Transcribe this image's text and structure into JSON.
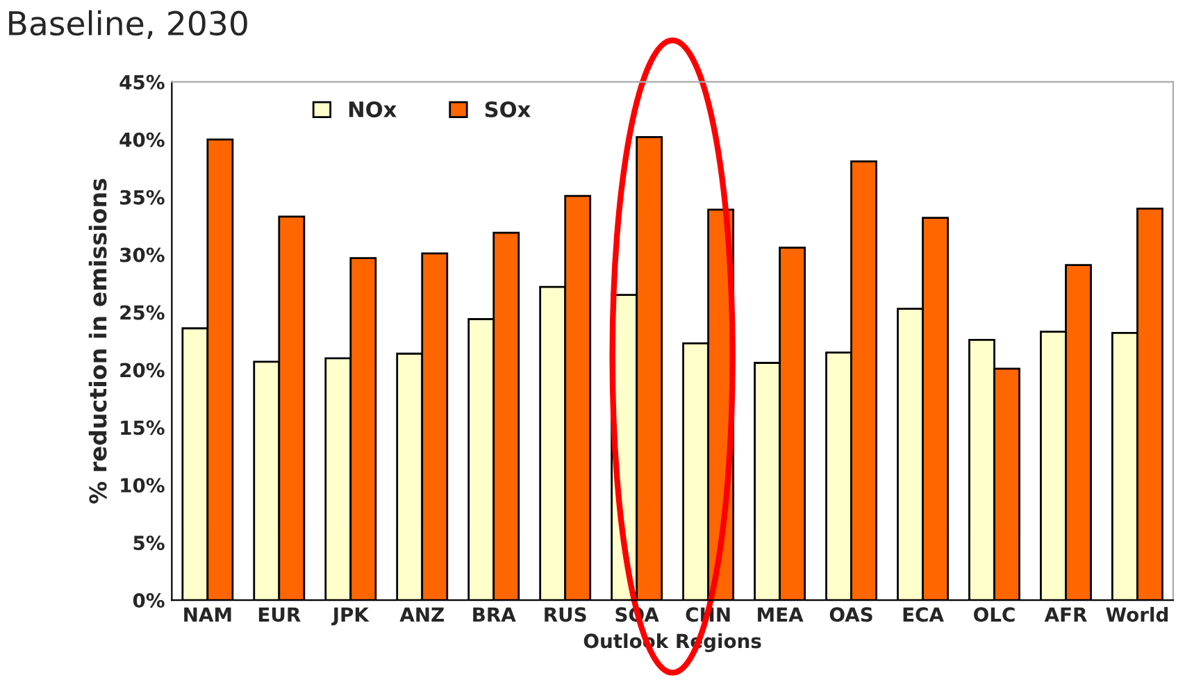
{
  "chart_data": {
    "type": "bar",
    "title": "Baseline, 2030",
    "xlabel": "Outlook Regions",
    "ylabel": "% reduction in emissions",
    "categories": [
      "NAM",
      "EUR",
      "JPK",
      "ANZ",
      "BRA",
      "RUS",
      "SOA",
      "CHN",
      "MEA",
      "OAS",
      "ECA",
      "OLC",
      "AFR",
      "World"
    ],
    "series": [
      {
        "name": "NOx",
        "color": "#ffffcc",
        "values": [
          23.6,
          20.7,
          21.0,
          21.4,
          24.4,
          27.2,
          26.5,
          22.3,
          20.6,
          21.5,
          25.3,
          22.6,
          23.3,
          23.2
        ]
      },
      {
        "name": "SOx",
        "color": "#ff6600",
        "values": [
          40.0,
          33.3,
          29.7,
          30.1,
          31.9,
          35.1,
          40.2,
          33.9,
          30.6,
          38.1,
          33.2,
          20.1,
          29.1,
          34.0
        ]
      }
    ],
    "ylim": [
      0,
      45
    ],
    "yticks": [
      {
        "value": 0,
        "label": "0%"
      },
      {
        "value": 5,
        "label": "5%"
      },
      {
        "value": 10,
        "label": "10%"
      },
      {
        "value": 15,
        "label": "15%"
      },
      {
        "value": 20,
        "label": "20%"
      },
      {
        "value": 25,
        "label": "25%"
      },
      {
        "value": 30,
        "label": "30%"
      },
      {
        "value": 35,
        "label": "35%"
      },
      {
        "value": 40,
        "label": "40%"
      },
      {
        "value": 45,
        "label": "45%"
      }
    ],
    "grid": false,
    "legend": "top"
  }
}
